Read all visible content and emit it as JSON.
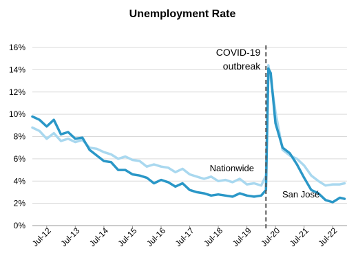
{
  "chart_data": {
    "type": "line",
    "title": "Unemployment Rate",
    "xlabel": "",
    "ylabel": "",
    "y_ticks": [
      "0%",
      "2%",
      "4%",
      "6%",
      "8%",
      "10%",
      "12%",
      "14%",
      "16%"
    ],
    "ylim": [
      0,
      16
    ],
    "x_ticks": [
      "Jul-12",
      "Jul-13",
      "Jul-14",
      "Jul-15",
      "Jul-16",
      "Jul-17",
      "Jul-18",
      "Jul-19",
      "Jul-20",
      "Jul-21",
      "Jul-22"
    ],
    "x_range": [
      "2012-01",
      "2022-12"
    ],
    "grid": "horizontal",
    "legend": "none (series labeled inline)",
    "annotation": {
      "lines": [
        "COVID-19",
        "outbreak"
      ],
      "date": "2020-03",
      "style": "dashed vertical line"
    },
    "series": [
      {
        "name": "Nationwide",
        "color": "#a9d8ef",
        "points": [
          [
            "2012-01",
            8.8
          ],
          [
            "2012-04",
            8.5
          ],
          [
            "2012-07",
            7.8
          ],
          [
            "2012-10",
            8.3
          ],
          [
            "2013-01",
            7.6
          ],
          [
            "2013-04",
            7.8
          ],
          [
            "2013-07",
            7.5
          ],
          [
            "2013-10",
            7.7
          ],
          [
            "2014-01",
            7.0
          ],
          [
            "2014-04",
            6.9
          ],
          [
            "2014-07",
            6.6
          ],
          [
            "2014-10",
            6.4
          ],
          [
            "2015-01",
            6.0
          ],
          [
            "2015-04",
            6.2
          ],
          [
            "2015-07",
            5.9
          ],
          [
            "2015-10",
            5.8
          ],
          [
            "2016-01",
            5.3
          ],
          [
            "2016-04",
            5.5
          ],
          [
            "2016-07",
            5.3
          ],
          [
            "2016-10",
            5.2
          ],
          [
            "2017-01",
            4.8
          ],
          [
            "2017-04",
            5.1
          ],
          [
            "2017-07",
            4.6
          ],
          [
            "2017-10",
            4.4
          ],
          [
            "2018-01",
            4.2
          ],
          [
            "2018-04",
            4.4
          ],
          [
            "2018-07",
            4.0
          ],
          [
            "2018-10",
            4.1
          ],
          [
            "2019-01",
            3.9
          ],
          [
            "2019-04",
            4.2
          ],
          [
            "2019-07",
            3.7
          ],
          [
            "2019-10",
            3.8
          ],
          [
            "2020-01",
            3.6
          ],
          [
            "2020-03",
            4.5
          ],
          [
            "2020-04",
            14.4
          ],
          [
            "2020-05",
            13.2
          ],
          [
            "2020-07",
            10.2
          ],
          [
            "2020-10",
            6.8
          ],
          [
            "2021-01",
            6.3
          ],
          [
            "2021-04",
            6.0
          ],
          [
            "2021-07",
            5.4
          ],
          [
            "2021-10",
            4.5
          ],
          [
            "2022-01",
            4.0
          ],
          [
            "2022-04",
            3.6
          ],
          [
            "2022-07",
            3.7
          ],
          [
            "2022-10",
            3.7
          ],
          [
            "2022-12",
            3.8
          ]
        ]
      },
      {
        "name": "San José",
        "color": "#2a97c7",
        "points": [
          [
            "2012-01",
            9.8
          ],
          [
            "2012-04",
            9.5
          ],
          [
            "2012-07",
            8.9
          ],
          [
            "2012-10",
            9.5
          ],
          [
            "2013-01",
            8.2
          ],
          [
            "2013-04",
            8.4
          ],
          [
            "2013-07",
            7.8
          ],
          [
            "2013-10",
            7.9
          ],
          [
            "2014-01",
            6.8
          ],
          [
            "2014-04",
            6.3
          ],
          [
            "2014-07",
            5.8
          ],
          [
            "2014-10",
            5.7
          ],
          [
            "2015-01",
            5.0
          ],
          [
            "2015-04",
            5.0
          ],
          [
            "2015-07",
            4.6
          ],
          [
            "2015-10",
            4.5
          ],
          [
            "2016-01",
            4.3
          ],
          [
            "2016-04",
            3.8
          ],
          [
            "2016-07",
            4.1
          ],
          [
            "2016-10",
            3.9
          ],
          [
            "2017-01",
            3.5
          ],
          [
            "2017-04",
            3.8
          ],
          [
            "2017-07",
            3.2
          ],
          [
            "2017-10",
            3.0
          ],
          [
            "2018-01",
            2.9
          ],
          [
            "2018-04",
            2.7
          ],
          [
            "2018-07",
            2.8
          ],
          [
            "2018-10",
            2.7
          ],
          [
            "2019-01",
            2.6
          ],
          [
            "2019-04",
            2.9
          ],
          [
            "2019-07",
            2.7
          ],
          [
            "2019-10",
            2.6
          ],
          [
            "2020-01",
            2.7
          ],
          [
            "2020-03",
            3.2
          ],
          [
            "2020-04",
            14.1
          ],
          [
            "2020-05",
            13.7
          ],
          [
            "2020-07",
            9.2
          ],
          [
            "2020-10",
            7.0
          ],
          [
            "2021-01",
            6.5
          ],
          [
            "2021-04",
            5.5
          ],
          [
            "2021-07",
            4.3
          ],
          [
            "2021-10",
            3.2
          ],
          [
            "2022-01",
            2.9
          ],
          [
            "2022-04",
            2.3
          ],
          [
            "2022-07",
            2.1
          ],
          [
            "2022-10",
            2.5
          ],
          [
            "2022-12",
            2.4
          ]
        ]
      }
    ]
  }
}
